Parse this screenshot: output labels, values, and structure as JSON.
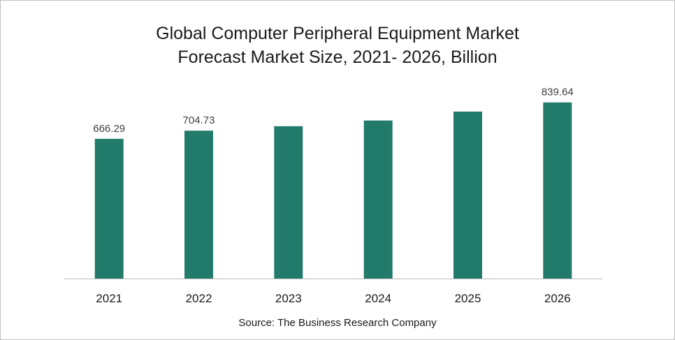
{
  "chart_data": {
    "type": "bar",
    "title_line1": "Global Computer Peripheral Equipment Market",
    "title_line2": "Forecast Market Size, 2021- 2026, Billion",
    "categories": [
      "2021",
      "2022",
      "2023",
      "2024",
      "2025",
      "2026"
    ],
    "values": [
      666.29,
      704.73,
      726.0,
      753.5,
      796.0,
      839.64
    ],
    "data_labels": [
      "666.29",
      "704.73",
      "",
      "",
      "",
      "839.64"
    ],
    "bar_color": "#217a6a",
    "axis_color": "#bfbfbf",
    "label_color": "#404040",
    "grid": false,
    "legend": "none",
    "source": "Source: The Business Research Company"
  }
}
